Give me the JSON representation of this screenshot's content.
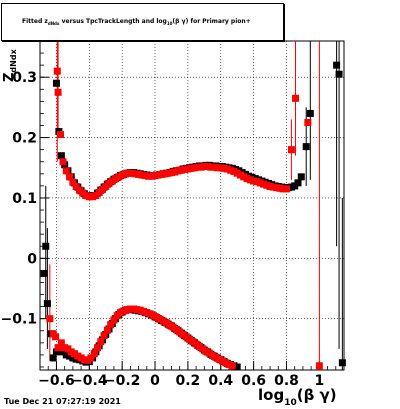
{
  "title": "Fitted z_dNdx versus TpcTrackLength and log_10(βγ) for Primary pion+",
  "title_parts": {
    "pre": "Fitted  z",
    "sub1": "dNdx",
    "mid": " versus TpcTrackLength and log",
    "sub2": "10",
    "post": "(β γ) for Primary pion+"
  },
  "ylabel": {
    "main": "Z",
    "sub": "dNdx"
  },
  "xlabel": {
    "main": "log",
    "sub": "10",
    "post": "(β γ)"
  },
  "timestamp": "Tue Dec 21 07:27:19 2021",
  "colors": {
    "black_series": "#000000",
    "red_series": "#ff0000",
    "grid": "#000000"
  },
  "chart_data": {
    "type": "scatter",
    "xlim": [
      -0.7,
      1.15
    ],
    "ylim": [
      -0.185,
      0.36
    ],
    "x_ticks": [
      -0.6,
      -0.4,
      -0.2,
      0,
      0.2,
      0.4,
      0.6,
      0.8,
      1
    ],
    "x_tick_labels": [
      "−0.6",
      "−0.4",
      "−0.2",
      "0",
      "0.2",
      "0.4",
      "0.6",
      "0.8",
      "1"
    ],
    "y_ticks": [
      -0.1,
      0,
      0.1,
      0.2,
      0.3
    ],
    "y_tick_labels": [
      "−0.1",
      "0",
      "0.1",
      "0.2",
      "0.3"
    ],
    "grid": true,
    "series": [
      {
        "marker": "square",
        "color": "#000000",
        "points": [
          [
            -0.6,
            0.29
          ],
          [
            -0.585,
            0.21
          ],
          [
            -0.57,
            0.17
          ],
          [
            -0.55,
            0.155
          ],
          [
            -0.53,
            0.145
          ],
          [
            -0.51,
            0.135
          ],
          [
            -0.49,
            0.125
          ],
          [
            -0.47,
            0.118
          ],
          [
            -0.45,
            0.112
          ],
          [
            -0.43,
            0.107
          ],
          [
            -0.41,
            0.104
          ],
          [
            -0.39,
            0.103
          ],
          [
            -0.37,
            0.104
          ],
          [
            -0.35,
            0.108
          ],
          [
            -0.33,
            0.113
          ],
          [
            -0.31,
            0.118
          ],
          [
            -0.29,
            0.123
          ],
          [
            -0.27,
            0.127
          ],
          [
            -0.25,
            0.131
          ],
          [
            -0.23,
            0.134
          ],
          [
            -0.21,
            0.137
          ],
          [
            -0.19,
            0.139
          ],
          [
            -0.17,
            0.141
          ],
          [
            -0.15,
            0.142
          ],
          [
            -0.13,
            0.142
          ],
          [
            -0.11,
            0.141
          ],
          [
            -0.09,
            0.14
          ],
          [
            -0.07,
            0.139
          ],
          [
            -0.05,
            0.138
          ],
          [
            -0.03,
            0.137
          ],
          [
            -0.01,
            0.137
          ],
          [
            0.01,
            0.138
          ],
          [
            0.03,
            0.139
          ],
          [
            0.05,
            0.14
          ],
          [
            0.07,
            0.141
          ],
          [
            0.09,
            0.142
          ],
          [
            0.11,
            0.144
          ],
          [
            0.13,
            0.145
          ],
          [
            0.15,
            0.146
          ],
          [
            0.17,
            0.148
          ],
          [
            0.19,
            0.149
          ],
          [
            0.21,
            0.15
          ],
          [
            0.23,
            0.151
          ],
          [
            0.25,
            0.152
          ],
          [
            0.27,
            0.153
          ],
          [
            0.29,
            0.153
          ],
          [
            0.31,
            0.154
          ],
          [
            0.33,
            0.154
          ],
          [
            0.35,
            0.153
          ],
          [
            0.37,
            0.153
          ],
          [
            0.39,
            0.152
          ],
          [
            0.41,
            0.152
          ],
          [
            0.43,
            0.151
          ],
          [
            0.45,
            0.15
          ],
          [
            0.47,
            0.149
          ],
          [
            0.49,
            0.147
          ],
          [
            0.51,
            0.145
          ],
          [
            0.53,
            0.142
          ],
          [
            0.55,
            0.139
          ],
          [
            0.57,
            0.136
          ],
          [
            0.59,
            0.134
          ],
          [
            0.61,
            0.132
          ],
          [
            0.63,
            0.13
          ],
          [
            0.65,
            0.128
          ],
          [
            0.67,
            0.126
          ],
          [
            0.69,
            0.124
          ],
          [
            0.71,
            0.122
          ],
          [
            0.73,
            0.12
          ],
          [
            0.75,
            0.119
          ],
          [
            0.77,
            0.118
          ],
          [
            0.79,
            0.117
          ],
          [
            0.81,
            0.117
          ],
          [
            0.83,
            0.118
          ],
          [
            0.85,
            0.12
          ],
          [
            0.87,
            0.125
          ],
          [
            0.89,
            0.135
          ],
          [
            0.92,
            0.185
          ],
          [
            0.945,
            0.24
          ],
          [
            1.105,
            0.32
          ],
          [
            1.12,
            0.305
          ],
          [
            -0.675,
            -0.025
          ],
          [
            -0.665,
            0.02
          ],
          [
            -0.655,
            -0.075
          ],
          [
            -0.63,
            -0.125
          ],
          [
            -0.62,
            -0.165
          ],
          [
            -0.6,
            -0.155
          ],
          [
            -0.58,
            -0.15
          ],
          [
            -0.56,
            -0.155
          ],
          [
            -0.54,
            -0.16
          ],
          [
            -0.52,
            -0.162
          ],
          [
            -0.5,
            -0.165
          ],
          [
            -0.48,
            -0.167
          ],
          [
            -0.46,
            -0.168
          ],
          [
            -0.44,
            -0.17
          ],
          [
            -0.42,
            -0.172
          ],
          [
            -0.4,
            -0.171
          ],
          [
            -0.38,
            -0.165
          ],
          [
            -0.36,
            -0.155
          ],
          [
            -0.34,
            -0.145
          ],
          [
            -0.32,
            -0.135
          ],
          [
            -0.3,
            -0.126
          ],
          [
            -0.28,
            -0.117
          ],
          [
            -0.26,
            -0.108
          ],
          [
            -0.24,
            -0.1
          ],
          [
            -0.22,
            -0.093
          ],
          [
            -0.2,
            -0.089
          ],
          [
            -0.18,
            -0.086
          ],
          [
            -0.16,
            -0.085
          ],
          [
            -0.14,
            -0.085
          ],
          [
            -0.12,
            -0.086
          ],
          [
            -0.1,
            -0.087
          ],
          [
            -0.08,
            -0.088
          ],
          [
            -0.06,
            -0.09
          ],
          [
            -0.04,
            -0.092
          ],
          [
            -0.02,
            -0.094
          ],
          [
            0,
            -0.097
          ],
          [
            0.02,
            -0.1
          ],
          [
            0.04,
            -0.103
          ],
          [
            0.06,
            -0.106
          ],
          [
            0.08,
            -0.109
          ],
          [
            0.1,
            -0.112
          ],
          [
            0.12,
            -0.116
          ],
          [
            0.14,
            -0.12
          ],
          [
            0.16,
            -0.124
          ],
          [
            0.18,
            -0.128
          ],
          [
            0.2,
            -0.132
          ],
          [
            0.22,
            -0.136
          ],
          [
            0.24,
            -0.14
          ],
          [
            0.26,
            -0.144
          ],
          [
            0.28,
            -0.148
          ],
          [
            0.3,
            -0.152
          ],
          [
            0.32,
            -0.155
          ],
          [
            0.34,
            -0.159
          ],
          [
            0.36,
            -0.162
          ],
          [
            0.38,
            -0.165
          ],
          [
            0.4,
            -0.168
          ],
          [
            0.42,
            -0.171
          ],
          [
            0.44,
            -0.174
          ],
          [
            0.46,
            -0.176
          ],
          [
            0.48,
            -0.178
          ],
          [
            0.5,
            -0.18
          ],
          [
            1.14,
            -0.173
          ]
        ]
      },
      {
        "marker": "square",
        "color": "#ff0000",
        "points": [
          [
            -0.595,
            0.31
          ],
          [
            -0.59,
            0.275
          ],
          [
            -0.575,
            0.205
          ],
          [
            -0.56,
            0.16
          ],
          [
            -0.54,
            0.145
          ],
          [
            -0.52,
            0.135
          ],
          [
            -0.5,
            0.126
          ],
          [
            -0.48,
            0.119
          ],
          [
            -0.46,
            0.113
          ],
          [
            -0.44,
            0.108
          ],
          [
            -0.42,
            0.104
          ],
          [
            -0.4,
            0.102
          ],
          [
            -0.38,
            0.102
          ],
          [
            -0.36,
            0.104
          ],
          [
            -0.34,
            0.109
          ],
          [
            -0.32,
            0.114
          ],
          [
            -0.3,
            0.119
          ],
          [
            -0.28,
            0.124
          ],
          [
            -0.26,
            0.128
          ],
          [
            -0.24,
            0.132
          ],
          [
            -0.22,
            0.135
          ],
          [
            -0.2,
            0.138
          ],
          [
            -0.18,
            0.14
          ],
          [
            -0.16,
            0.141
          ],
          [
            -0.14,
            0.141
          ],
          [
            -0.12,
            0.14
          ],
          [
            -0.1,
            0.139
          ],
          [
            -0.08,
            0.138
          ],
          [
            -0.06,
            0.137
          ],
          [
            -0.04,
            0.136
          ],
          [
            -0.02,
            0.136
          ],
          [
            0,
            0.137
          ],
          [
            0.02,
            0.138
          ],
          [
            0.04,
            0.139
          ],
          [
            0.06,
            0.14
          ],
          [
            0.08,
            0.141
          ],
          [
            0.1,
            0.142
          ],
          [
            0.12,
            0.143
          ],
          [
            0.14,
            0.145
          ],
          [
            0.16,
            0.146
          ],
          [
            0.18,
            0.147
          ],
          [
            0.2,
            0.148
          ],
          [
            0.22,
            0.149
          ],
          [
            0.24,
            0.15
          ],
          [
            0.26,
            0.151
          ],
          [
            0.28,
            0.151
          ],
          [
            0.3,
            0.152
          ],
          [
            0.32,
            0.152
          ],
          [
            0.34,
            0.151
          ],
          [
            0.36,
            0.151
          ],
          [
            0.38,
            0.15
          ],
          [
            0.4,
            0.15
          ],
          [
            0.42,
            0.149
          ],
          [
            0.44,
            0.148
          ],
          [
            0.46,
            0.146
          ],
          [
            0.48,
            0.144
          ],
          [
            0.5,
            0.141
          ],
          [
            0.52,
            0.138
          ],
          [
            0.54,
            0.135
          ],
          [
            0.56,
            0.132
          ],
          [
            0.58,
            0.13
          ],
          [
            0.6,
            0.128
          ],
          [
            0.62,
            0.127
          ],
          [
            0.64,
            0.125
          ],
          [
            0.66,
            0.123
          ],
          [
            0.68,
            0.121
          ],
          [
            0.7,
            0.119
          ],
          [
            0.72,
            0.118
          ],
          [
            0.74,
            0.117
          ],
          [
            0.76,
            0.116
          ],
          [
            0.78,
            0.115
          ],
          [
            0.8,
            0.115
          ],
          [
            0.83,
            0.18
          ],
          [
            0.855,
            0.265
          ],
          [
            0.93,
            0.225
          ],
          [
            -0.64,
            -0.1
          ],
          [
            -0.62,
            -0.125
          ],
          [
            -0.605,
            -0.13
          ],
          [
            -0.59,
            -0.148
          ],
          [
            -0.57,
            -0.14
          ],
          [
            -0.55,
            -0.148
          ],
          [
            -0.53,
            -0.15
          ],
          [
            -0.51,
            -0.155
          ],
          [
            -0.49,
            -0.158
          ],
          [
            -0.47,
            -0.162
          ],
          [
            -0.45,
            -0.165
          ],
          [
            -0.43,
            -0.168
          ],
          [
            -0.41,
            -0.169
          ],
          [
            -0.39,
            -0.165
          ],
          [
            -0.37,
            -0.158
          ],
          [
            -0.35,
            -0.148
          ],
          [
            -0.33,
            -0.138
          ],
          [
            -0.31,
            -0.128
          ],
          [
            -0.29,
            -0.119
          ],
          [
            -0.27,
            -0.11
          ],
          [
            -0.25,
            -0.102
          ],
          [
            -0.23,
            -0.095
          ],
          [
            -0.21,
            -0.09
          ],
          [
            -0.19,
            -0.087
          ],
          [
            -0.17,
            -0.085
          ],
          [
            -0.15,
            -0.084
          ],
          [
            -0.13,
            -0.084
          ],
          [
            -0.11,
            -0.085
          ],
          [
            -0.09,
            -0.086
          ],
          [
            -0.07,
            -0.088
          ],
          [
            -0.05,
            -0.09
          ],
          [
            -0.03,
            -0.092
          ],
          [
            -0.01,
            -0.095
          ],
          [
            0.01,
            -0.098
          ],
          [
            0.03,
            -0.101
          ],
          [
            0.05,
            -0.104
          ],
          [
            0.07,
            -0.107
          ],
          [
            0.09,
            -0.111
          ],
          [
            0.11,
            -0.114
          ],
          [
            0.13,
            -0.118
          ],
          [
            0.15,
            -0.122
          ],
          [
            0.17,
            -0.126
          ],
          [
            0.19,
            -0.13
          ],
          [
            0.21,
            -0.134
          ],
          [
            0.23,
            -0.138
          ],
          [
            0.25,
            -0.142
          ],
          [
            0.27,
            -0.146
          ],
          [
            0.29,
            -0.15
          ],
          [
            0.31,
            -0.154
          ],
          [
            0.33,
            -0.157
          ],
          [
            0.35,
            -0.161
          ],
          [
            0.37,
            -0.164
          ],
          [
            0.39,
            -0.167
          ],
          [
            0.41,
            -0.17
          ],
          [
            0.43,
            -0.173
          ],
          [
            0.45,
            -0.176
          ],
          [
            0.47,
            -0.178
          ],
          [
            1.0,
            -0.178
          ]
        ]
      }
    ],
    "error_bars": [
      {
        "color": "#ff0000",
        "x": -0.595,
        "low": 0.16,
        "high": 0.36
      },
      {
        "color": "#ff0000",
        "x": -0.59,
        "low": 0.2,
        "high": 0.36
      },
      {
        "color": "#ff0000",
        "x": -0.64,
        "low": -0.17,
        "high": -0.01
      },
      {
        "color": "#ff0000",
        "x": 0.855,
        "low": 0.17,
        "high": 0.36
      },
      {
        "color": "#ff0000",
        "x": 0.83,
        "low": 0.13,
        "high": 0.23
      },
      {
        "color": "#ff0000",
        "x": 1.0,
        "low": -0.185,
        "high": 0.36
      },
      {
        "color": "#000000",
        "x": -0.665,
        "low": -0.1,
        "high": 0.12
      },
      {
        "color": "#000000",
        "x": -0.655,
        "low": -0.15,
        "high": 0.05
      },
      {
        "color": "#000000",
        "x": 0.945,
        "low": 0.13,
        "high": 0.36
      },
      {
        "color": "#000000",
        "x": 0.92,
        "low": 0.12,
        "high": 0.25
      },
      {
        "color": "#000000",
        "x": 1.105,
        "low": 0.02,
        "high": 0.36
      },
      {
        "color": "#000000",
        "x": 1.12,
        "low": -0.15,
        "high": 0.36
      },
      {
        "color": "#000000",
        "x": 1.14,
        "low": -0.185,
        "high": 0.1
      }
    ]
  }
}
